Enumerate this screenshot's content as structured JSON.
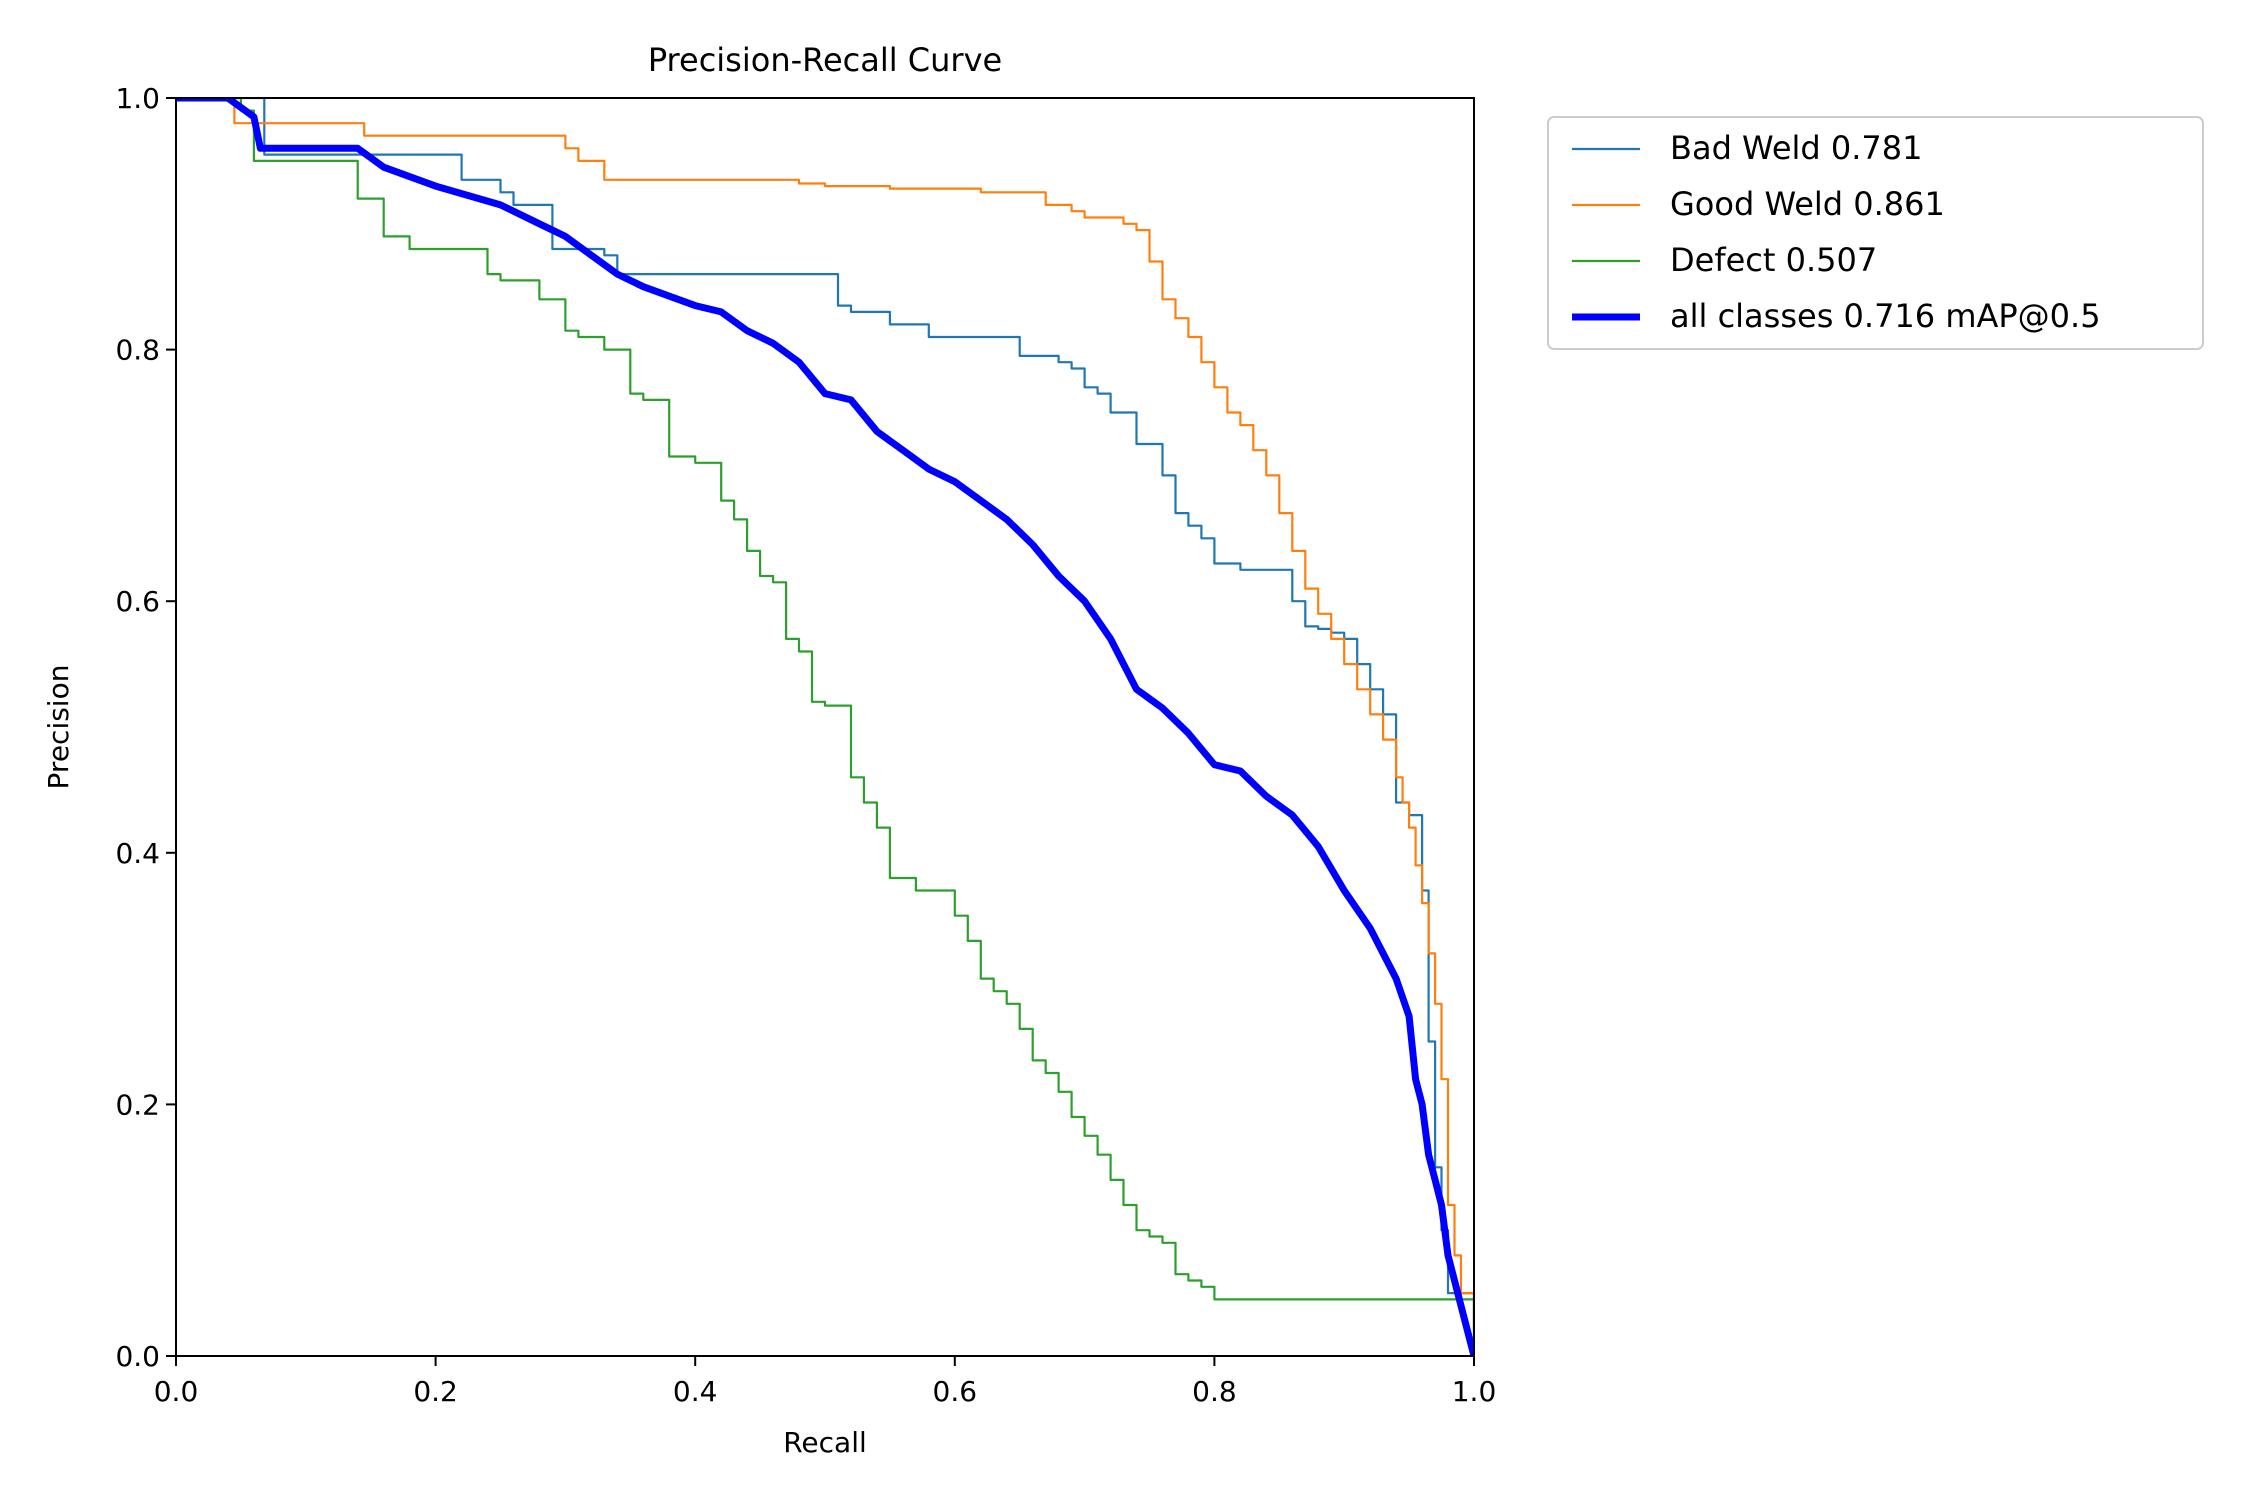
{
  "chart_data": {
    "type": "line",
    "title": "Precision-Recall Curve",
    "xlabel": "Recall",
    "ylabel": "Precision",
    "xlim": [
      0.0,
      1.0
    ],
    "ylim": [
      0.0,
      1.0
    ],
    "xticks": [
      "0.0",
      "0.2",
      "0.4",
      "0.6",
      "0.8",
      "1.0"
    ],
    "yticks": [
      "0.0",
      "0.2",
      "0.4",
      "0.6",
      "0.8",
      "1.0"
    ],
    "grid": false,
    "legend_position": "outside-upper-right",
    "series": [
      {
        "name": "Bad Weld 0.781",
        "color": "#1f77b4",
        "style": "step",
        "x": [
          0.0,
          0.065,
          0.068,
          0.2,
          0.22,
          0.25,
          0.26,
          0.29,
          0.33,
          0.34,
          0.44,
          0.5,
          0.51,
          0.52,
          0.55,
          0.58,
          0.64,
          0.65,
          0.68,
          0.69,
          0.7,
          0.71,
          0.72,
          0.74,
          0.76,
          0.77,
          0.78,
          0.79,
          0.8,
          0.82,
          0.84,
          0.86,
          0.87,
          0.88,
          0.89,
          0.9,
          0.91,
          0.92,
          0.93,
          0.94,
          0.95,
          0.96,
          0.965,
          0.97,
          0.975,
          0.98,
          1.0
        ],
        "y": [
          1.0,
          1.0,
          0.955,
          0.955,
          0.935,
          0.925,
          0.915,
          0.88,
          0.875,
          0.86,
          0.86,
          0.86,
          0.835,
          0.83,
          0.82,
          0.81,
          0.81,
          0.795,
          0.79,
          0.785,
          0.77,
          0.765,
          0.75,
          0.725,
          0.7,
          0.67,
          0.66,
          0.65,
          0.63,
          0.625,
          0.625,
          0.6,
          0.58,
          0.578,
          0.575,
          0.57,
          0.55,
          0.53,
          0.51,
          0.44,
          0.43,
          0.37,
          0.25,
          0.15,
          0.1,
          0.05,
          0.0
        ]
      },
      {
        "name": "Good Weld 0.861",
        "color": "#ff7f0e",
        "style": "step",
        "x": [
          0.0,
          0.04,
          0.045,
          0.14,
          0.145,
          0.29,
          0.3,
          0.31,
          0.33,
          0.34,
          0.44,
          0.48,
          0.5,
          0.55,
          0.62,
          0.67,
          0.69,
          0.7,
          0.73,
          0.74,
          0.75,
          0.76,
          0.77,
          0.78,
          0.79,
          0.8,
          0.81,
          0.82,
          0.83,
          0.84,
          0.85,
          0.86,
          0.87,
          0.88,
          0.89,
          0.9,
          0.91,
          0.92,
          0.93,
          0.94,
          0.945,
          0.95,
          0.955,
          0.96,
          0.965,
          0.97,
          0.975,
          0.98,
          0.985,
          0.99,
          1.0
        ],
        "y": [
          1.0,
          1.0,
          0.98,
          0.98,
          0.97,
          0.97,
          0.96,
          0.95,
          0.935,
          0.935,
          0.935,
          0.932,
          0.93,
          0.928,
          0.925,
          0.915,
          0.91,
          0.905,
          0.9,
          0.895,
          0.87,
          0.84,
          0.825,
          0.81,
          0.79,
          0.77,
          0.75,
          0.74,
          0.72,
          0.7,
          0.67,
          0.64,
          0.61,
          0.59,
          0.57,
          0.55,
          0.53,
          0.51,
          0.49,
          0.46,
          0.44,
          0.42,
          0.39,
          0.36,
          0.32,
          0.28,
          0.22,
          0.12,
          0.08,
          0.05,
          0.0
        ]
      },
      {
        "name": "Defect 0.507",
        "color": "#2ca02c",
        "style": "step",
        "x": [
          0.0,
          0.05,
          0.06,
          0.135,
          0.14,
          0.15,
          0.16,
          0.18,
          0.24,
          0.25,
          0.28,
          0.3,
          0.31,
          0.33,
          0.35,
          0.36,
          0.38,
          0.4,
          0.42,
          0.43,
          0.44,
          0.45,
          0.46,
          0.47,
          0.48,
          0.49,
          0.5,
          0.52,
          0.53,
          0.54,
          0.55,
          0.56,
          0.57,
          0.6,
          0.61,
          0.62,
          0.63,
          0.64,
          0.65,
          0.66,
          0.67,
          0.68,
          0.69,
          0.7,
          0.71,
          0.72,
          0.73,
          0.74,
          0.75,
          0.76,
          0.77,
          0.78,
          0.79,
          0.8,
          1.0
        ],
        "y": [
          1.0,
          0.99,
          0.95,
          0.95,
          0.92,
          0.92,
          0.89,
          0.88,
          0.86,
          0.855,
          0.84,
          0.815,
          0.81,
          0.8,
          0.765,
          0.76,
          0.715,
          0.71,
          0.68,
          0.665,
          0.64,
          0.62,
          0.615,
          0.57,
          0.56,
          0.52,
          0.517,
          0.46,
          0.44,
          0.42,
          0.38,
          0.38,
          0.37,
          0.35,
          0.33,
          0.3,
          0.29,
          0.28,
          0.26,
          0.235,
          0.225,
          0.21,
          0.19,
          0.175,
          0.16,
          0.14,
          0.12,
          0.1,
          0.095,
          0.09,
          0.065,
          0.06,
          0.055,
          0.045,
          0.0
        ]
      },
      {
        "name": "all classes 0.716 mAP@0.5",
        "color": "#0000ff",
        "style": "line",
        "x": [
          0.0,
          0.04,
          0.06,
          0.065,
          0.14,
          0.16,
          0.2,
          0.25,
          0.28,
          0.3,
          0.32,
          0.34,
          0.36,
          0.4,
          0.42,
          0.44,
          0.46,
          0.48,
          0.5,
          0.52,
          0.54,
          0.56,
          0.58,
          0.6,
          0.62,
          0.64,
          0.66,
          0.68,
          0.7,
          0.72,
          0.74,
          0.76,
          0.78,
          0.8,
          0.82,
          0.84,
          0.86,
          0.88,
          0.9,
          0.92,
          0.93,
          0.94,
          0.95,
          0.955,
          0.96,
          0.965,
          0.97,
          0.975,
          0.98,
          0.985,
          0.99,
          1.0
        ],
        "y": [
          1.0,
          1.0,
          0.985,
          0.96,
          0.96,
          0.945,
          0.93,
          0.915,
          0.9,
          0.89,
          0.875,
          0.86,
          0.85,
          0.835,
          0.83,
          0.815,
          0.805,
          0.79,
          0.765,
          0.76,
          0.735,
          0.72,
          0.705,
          0.695,
          0.68,
          0.665,
          0.645,
          0.62,
          0.6,
          0.57,
          0.53,
          0.515,
          0.495,
          0.47,
          0.465,
          0.445,
          0.43,
          0.405,
          0.37,
          0.34,
          0.32,
          0.3,
          0.27,
          0.22,
          0.2,
          0.16,
          0.14,
          0.12,
          0.08,
          0.06,
          0.04,
          0.0
        ]
      }
    ]
  }
}
